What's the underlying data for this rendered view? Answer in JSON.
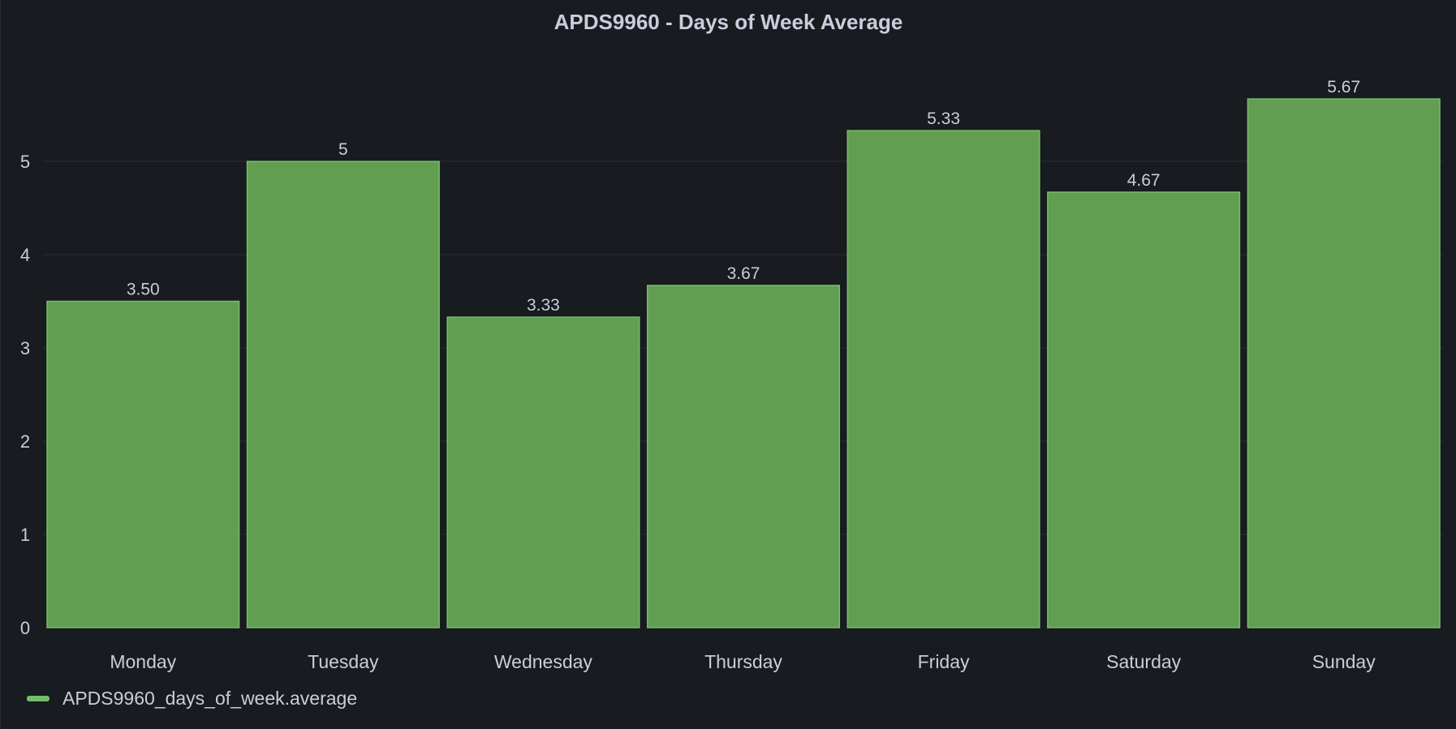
{
  "panel": {
    "title": "APDS9960 - Days of Week Average"
  },
  "chart_data": {
    "type": "bar",
    "title": "APDS9960 - Days of Week Average",
    "categories": [
      "Monday",
      "Tuesday",
      "Wednesday",
      "Thursday",
      "Friday",
      "Saturday",
      "Sunday"
    ],
    "series": [
      {
        "name": "APDS9960_days_of_week.average",
        "values": [
          3.5,
          5,
          3.33,
          3.67,
          5.33,
          4.67,
          5.67
        ],
        "labels": [
          "3.50",
          "5",
          "3.33",
          "3.67",
          "5.33",
          "4.67",
          "5.67"
        ]
      }
    ],
    "yticks": [
      0,
      1,
      2,
      3,
      4,
      5
    ],
    "ylim": [
      0,
      5.67
    ],
    "grid": true,
    "legend_position": "bottom-left",
    "colors": {
      "bar_fill": "#629e51",
      "bar_stroke": "#73bf69",
      "grid": "#2a2d33",
      "text": "#ccccdc"
    }
  },
  "legend": {
    "label": "APDS9960_days_of_week.average"
  }
}
